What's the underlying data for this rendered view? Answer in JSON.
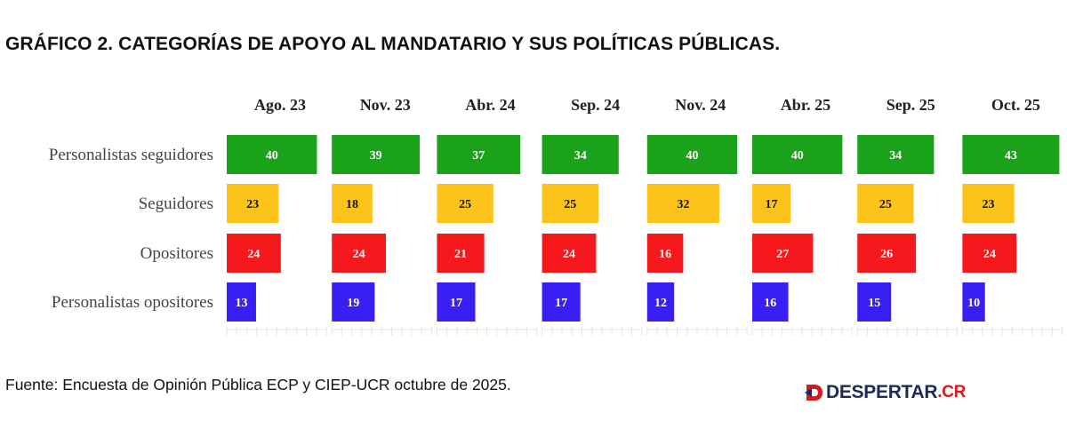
{
  "title": "GRÁFICO 2. CATEGORÍAS DE APOYO AL MANDATARIO Y SUS POLÍTICAS PÚBLICAS.",
  "source": "Fuente: Encuesta de Opinión Pública ECP y CIEP-UCR octubre de 2025.",
  "logo": {
    "name": "DESPERTAR",
    "tld": ".CR",
    "icon": "despertar-logo-icon"
  },
  "chart_data": {
    "type": "bar",
    "orientation": "horizontal",
    "layout": "small-multiples",
    "title": "GRÁFICO 2. CATEGORÍAS DE APOYO AL MANDATARIO Y SUS POLÍTICAS PÚBLICAS.",
    "panels": [
      "Ago. 23",
      "Nov. 23",
      "Abr. 24",
      "Sep. 24",
      "Nov. 24",
      "Abr. 25",
      "Sep. 25",
      "Oct. 25"
    ],
    "categories": [
      "Personalistas seguidores",
      "Seguidores",
      "Opositores",
      "Personalistas opositores"
    ],
    "colors": [
      "#1aa31a",
      "#fcc31a",
      "#f5191e",
      "#3a1ff5"
    ],
    "label_colors": [
      "#ffffff",
      "#111111",
      "#ffffff",
      "#ffffff"
    ],
    "values": [
      [
        40,
        23,
        24,
        13
      ],
      [
        39,
        18,
        24,
        19
      ],
      [
        37,
        25,
        21,
        17
      ],
      [
        34,
        25,
        24,
        17
      ],
      [
        40,
        32,
        16,
        12
      ],
      [
        40,
        17,
        27,
        16
      ],
      [
        34,
        25,
        26,
        15
      ],
      [
        43,
        23,
        24,
        10
      ]
    ],
    "xlim": [
      0,
      43
    ],
    "grid": false,
    "legend": "none"
  }
}
